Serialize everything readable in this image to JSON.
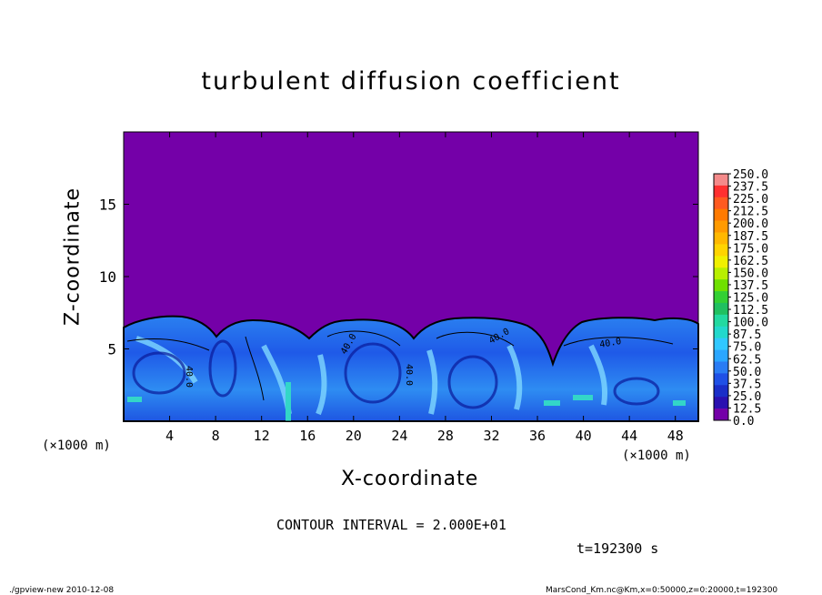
{
  "chart_data": {
    "type": "heatmap",
    "title": "turbulent diffusion coefficient",
    "xlabel": "X-coordinate",
    "ylabel": "Z-coordinate",
    "x_unit_label": "(×1000 m)",
    "xlim": [
      0,
      50
    ],
    "ylim": [
      0,
      20
    ],
    "x_ticks": [
      4,
      8,
      12,
      16,
      20,
      24,
      28,
      32,
      36,
      40,
      44,
      48
    ],
    "y_ticks": [
      5,
      10,
      15
    ],
    "colorbar": {
      "levels": [
        "250.0",
        "237.5",
        "225.0",
        "212.5",
        "200.0",
        "187.5",
        "175.0",
        "162.5",
        "150.0",
        "137.5",
        "125.0",
        "112.5",
        "100.0",
        "87.5",
        "75.0",
        "62.5",
        "50.0",
        "37.5",
        "25.0",
        "12.5",
        "0.0"
      ],
      "colors": [
        "#f48a8a",
        "#ff3030",
        "#ff5a20",
        "#ff7a00",
        "#ff9a00",
        "#ffb800",
        "#ffd400",
        "#f0f000",
        "#b8ef00",
        "#6fe000",
        "#33d033",
        "#20c060",
        "#22d9a0",
        "#22d8cc",
        "#30c8ff",
        "#2aa6ff",
        "#2a7cf4",
        "#1f50e6",
        "#1a2ec8",
        "#2a10b0",
        "#7400a8"
      ]
    },
    "contour_labels": [
      "40.0",
      "40.0",
      "40.0",
      "40.0",
      "40.0"
    ],
    "contour_interval": "CONTOUR INTERVAL = 2.000E+01",
    "time": "t=192300 s"
  },
  "footer": {
    "left": "./gpview-new   2010-12-08",
    "right": "MarsCond_Km.nc@Km,x=0:50000,z=0:20000,t=192300"
  }
}
